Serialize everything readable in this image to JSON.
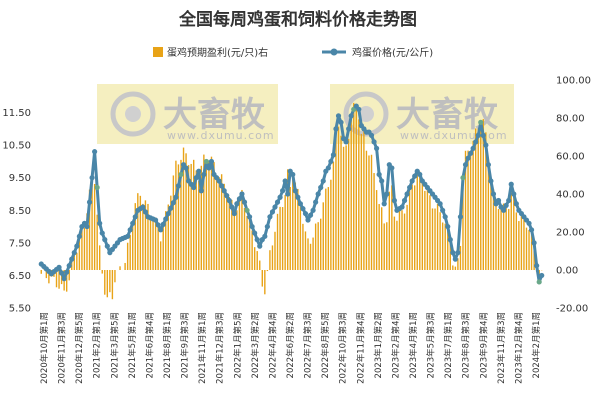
{
  "chart_data": {
    "type": "bar+line",
    "title": "全国每周鸡蛋和饲料价格走势图",
    "legend": {
      "placement": "top",
      "entries": [
        {
          "name": "蛋鸡预期盈利(元/只)右",
          "color": "#E8A317",
          "kind": "bar"
        },
        {
          "name": "鸡蛋价格(元/公斤)",
          "color": "#4A86A8",
          "kind": "line-marker"
        }
      ]
    },
    "left_axis": {
      "ylim": [
        5.5,
        12.5
      ],
      "ticks": [
        "5.50",
        "6.50",
        "7.50",
        "8.50",
        "9.50",
        "10.50",
        "11.50"
      ]
    },
    "right_axis": {
      "ylim": [
        -20,
        100
      ],
      "ticks": [
        "-20.00",
        "0.00",
        "20.00",
        "40.00",
        "60.00",
        "80.00",
        "100.00"
      ]
    },
    "x_tick_labels": [
      "2020年10月第1周",
      "2020年11月第3周",
      "2020年12月第5周",
      "2021年2月第1周",
      "2021年3月第5周",
      "2021年5月第1周",
      "2021年6月第4周",
      "2021年8月第1周",
      "2021年9月第3周",
      "2021年11月第1周",
      "2021年12月第3周",
      "2022年1月第5周",
      "2022年3月第2周",
      "2022年4月第4周",
      "2022年6月第2周",
      "2022年7月第3周",
      "2022年8月第5周",
      "2022年10月第3周",
      "2022年11月第4周",
      "2023年1月第2周",
      "2023年2月第4周",
      "2023年4月第1周",
      "2023年5月第3周",
      "2023年7月第1周",
      "2023年8月第3周",
      "2023年9月第4周",
      "2023年11月第3周",
      "2023年12月第4周",
      "2024年2月第1周"
    ],
    "egg_price_keypoints": [
      [
        0,
        6.85
      ],
      [
        4,
        6.55
      ],
      [
        7,
        6.75
      ],
      [
        9,
        6.4
      ],
      [
        11,
        6.8
      ],
      [
        14,
        7.4
      ],
      [
        16,
        8.0
      ],
      [
        17,
        8.1
      ],
      [
        18,
        8.0
      ],
      [
        20,
        9.5
      ],
      [
        21,
        10.3
      ],
      [
        22,
        9.2
      ],
      [
        23,
        8.1
      ],
      [
        24,
        7.8
      ],
      [
        25,
        7.6
      ],
      [
        27,
        7.2
      ],
      [
        29,
        7.4
      ],
      [
        31,
        7.6
      ],
      [
        34,
        7.7
      ],
      [
        36,
        8.1
      ],
      [
        38,
        8.5
      ],
      [
        40,
        8.6
      ],
      [
        42,
        8.3
      ],
      [
        45,
        8.2
      ],
      [
        47,
        7.9
      ],
      [
        50,
        8.4
      ],
      [
        53,
        8.9
      ],
      [
        55,
        9.6
      ],
      [
        56,
        9.9
      ],
      [
        57,
        9.8
      ],
      [
        58,
        9.4
      ],
      [
        60,
        9.2
      ],
      [
        61,
        9.5
      ],
      [
        62,
        9.7
      ],
      [
        63,
        9.1
      ],
      [
        64,
        9.6
      ],
      [
        65,
        10.0
      ],
      [
        66,
        9.8
      ],
      [
        67,
        10.0
      ],
      [
        68,
        9.6
      ],
      [
        70,
        9.4
      ],
      [
        72,
        9.1
      ],
      [
        74,
        8.8
      ],
      [
        76,
        8.4
      ],
      [
        77,
        8.7
      ],
      [
        79,
        9.0
      ],
      [
        81,
        8.5
      ],
      [
        82,
        8.3
      ],
      [
        83,
        8.0
      ],
      [
        85,
        7.6
      ],
      [
        86,
        7.4
      ],
      [
        87,
        7.6
      ],
      [
        88,
        7.7
      ],
      [
        90,
        8.3
      ],
      [
        92,
        8.6
      ],
      [
        94,
        8.9
      ],
      [
        95,
        9.1
      ],
      [
        96,
        9.4
      ],
      [
        97,
        9.0
      ],
      [
        98,
        9.7
      ],
      [
        99,
        9.6
      ],
      [
        100,
        9.1
      ],
      [
        102,
        8.7
      ],
      [
        104,
        8.4
      ],
      [
        105,
        8.2
      ],
      [
        107,
        8.5
      ],
      [
        109,
        9.0
      ],
      [
        111,
        9.4
      ],
      [
        112,
        9.7
      ],
      [
        113,
        9.8
      ],
      [
        114,
        10.0
      ],
      [
        115,
        10.2
      ],
      [
        116,
        11.0
      ],
      [
        117,
        11.4
      ],
      [
        118,
        11.2
      ],
      [
        119,
        10.7
      ],
      [
        120,
        10.6
      ],
      [
        121,
        11.0
      ],
      [
        122,
        11.4
      ],
      [
        123,
        11.6
      ],
      [
        124,
        11.7
      ],
      [
        125,
        11.6
      ],
      [
        126,
        11.1
      ],
      [
        127,
        11.0
      ],
      [
        128,
        10.9
      ],
      [
        129,
        10.9
      ],
      [
        130,
        10.8
      ],
      [
        131,
        10.6
      ],
      [
        132,
        10.4
      ],
      [
        133,
        9.6
      ],
      [
        134,
        9.4
      ],
      [
        135,
        8.7
      ],
      [
        136,
        9.0
      ],
      [
        137,
        9.9
      ],
      [
        138,
        9.8
      ],
      [
        139,
        8.8
      ],
      [
        140,
        8.5
      ],
      [
        142,
        8.6
      ],
      [
        144,
        9.0
      ],
      [
        146,
        9.4
      ],
      [
        148,
        9.7
      ],
      [
        149,
        9.6
      ],
      [
        150,
        9.4
      ],
      [
        152,
        9.2
      ],
      [
        154,
        9.0
      ],
      [
        155,
        8.9
      ],
      [
        157,
        8.7
      ],
      [
        158,
        8.5
      ],
      [
        159,
        8.3
      ],
      [
        160,
        8.0
      ],
      [
        161,
        7.6
      ],
      [
        162,
        7.2
      ],
      [
        163,
        7.0
      ],
      [
        164,
        7.2
      ],
      [
        165,
        8.3
      ],
      [
        166,
        9.5
      ],
      [
        167,
        9.9
      ],
      [
        168,
        10.1
      ],
      [
        170,
        10.4
      ],
      [
        172,
        10.8
      ],
      [
        173,
        11.2
      ],
      [
        174,
        10.8
      ],
      [
        175,
        10.5
      ],
      [
        176,
        9.9
      ],
      [
        177,
        9.4
      ],
      [
        178,
        9.0
      ],
      [
        179,
        8.7
      ],
      [
        180,
        8.8
      ],
      [
        181,
        8.6
      ],
      [
        182,
        8.5
      ],
      [
        184,
        8.8
      ],
      [
        185,
        9.3
      ],
      [
        186,
        9.0
      ],
      [
        187,
        8.7
      ],
      [
        188,
        8.5
      ],
      [
        189,
        8.4
      ],
      [
        190,
        8.3
      ],
      [
        191,
        8.2
      ],
      [
        192,
        8.1
      ],
      [
        193,
        7.9
      ],
      [
        194,
        7.5
      ],
      [
        195,
        6.8
      ],
      [
        196,
        6.3
      ],
      [
        197,
        6.5
      ]
    ],
    "profit_keypoints": [
      [
        0,
        -2
      ],
      [
        4,
        -5
      ],
      [
        7,
        -8
      ],
      [
        9,
        -12
      ],
      [
        11,
        -5
      ],
      [
        13,
        8
      ],
      [
        16,
        20
      ],
      [
        17,
        24
      ],
      [
        19,
        40
      ],
      [
        21,
        48
      ],
      [
        22,
        30
      ],
      [
        23,
        10
      ],
      [
        24,
        -2
      ],
      [
        25,
        -10
      ],
      [
        26,
        -15
      ],
      [
        28,
        -14
      ],
      [
        29,
        -4
      ],
      [
        31,
        0
      ],
      [
        33,
        5
      ],
      [
        35,
        18
      ],
      [
        37,
        35
      ],
      [
        39,
        40
      ],
      [
        41,
        35
      ],
      [
        43,
        30
      ],
      [
        45,
        25
      ],
      [
        47,
        18
      ],
      [
        49,
        28
      ],
      [
        51,
        42
      ],
      [
        53,
        55
      ],
      [
        55,
        60
      ],
      [
        56,
        62
      ],
      [
        58,
        58
      ],
      [
        60,
        55
      ],
      [
        62,
        50
      ],
      [
        64,
        58
      ],
      [
        66,
        60
      ],
      [
        68,
        55
      ],
      [
        70,
        50
      ],
      [
        72,
        45
      ],
      [
        74,
        38
      ],
      [
        76,
        30
      ],
      [
        77,
        34
      ],
      [
        79,
        40
      ],
      [
        81,
        30
      ],
      [
        83,
        20
      ],
      [
        85,
        10
      ],
      [
        86,
        2
      ],
      [
        87,
        -8
      ],
      [
        88,
        -10
      ],
      [
        89,
        -2
      ],
      [
        90,
        8
      ],
      [
        92,
        22
      ],
      [
        94,
        32
      ],
      [
        96,
        40
      ],
      [
        97,
        50
      ],
      [
        98,
        44
      ],
      [
        99,
        52
      ],
      [
        100,
        45
      ],
      [
        102,
        35
      ],
      [
        104,
        18
      ],
      [
        105,
        15
      ],
      [
        107,
        18
      ],
      [
        109,
        25
      ],
      [
        111,
        35
      ],
      [
        112,
        40
      ],
      [
        113,
        45
      ],
      [
        114,
        50
      ],
      [
        115,
        55
      ],
      [
        116,
        70
      ],
      [
        117,
        78
      ],
      [
        118,
        72
      ],
      [
        119,
        62
      ],
      [
        120,
        65
      ],
      [
        121,
        72
      ],
      [
        122,
        80
      ],
      [
        123,
        85
      ],
      [
        124,
        88
      ],
      [
        125,
        82
      ],
      [
        126,
        70
      ],
      [
        127,
        72
      ],
      [
        128,
        65
      ],
      [
        129,
        62
      ],
      [
        130,
        58
      ],
      [
        131,
        50
      ],
      [
        132,
        45
      ],
      [
        133,
        35
      ],
      [
        134,
        30
      ],
      [
        135,
        25
      ],
      [
        136,
        28
      ],
      [
        137,
        40
      ],
      [
        138,
        42
      ],
      [
        139,
        30
      ],
      [
        140,
        28
      ],
      [
        142,
        30
      ],
      [
        144,
        35
      ],
      [
        146,
        45
      ],
      [
        148,
        50
      ],
      [
        150,
        48
      ],
      [
        152,
        40
      ],
      [
        154,
        35
      ],
      [
        156,
        32
      ],
      [
        158,
        28
      ],
      [
        160,
        20
      ],
      [
        161,
        15
      ],
      [
        162,
        5
      ],
      [
        163,
        0
      ],
      [
        164,
        4
      ],
      [
        165,
        15
      ],
      [
        166,
        45
      ],
      [
        167,
        60
      ],
      [
        168,
        62
      ],
      [
        170,
        68
      ],
      [
        172,
        75
      ],
      [
        173,
        80
      ],
      [
        174,
        78
      ],
      [
        175,
        70
      ],
      [
        176,
        60
      ],
      [
        177,
        50
      ],
      [
        178,
        40
      ],
      [
        179,
        35
      ],
      [
        180,
        35
      ],
      [
        182,
        32
      ],
      [
        184,
        35
      ],
      [
        185,
        40
      ],
      [
        186,
        38
      ],
      [
        187,
        32
      ],
      [
        188,
        28
      ],
      [
        189,
        28
      ],
      [
        190,
        25
      ],
      [
        191,
        25
      ],
      [
        192,
        22
      ],
      [
        193,
        18
      ],
      [
        194,
        10
      ],
      [
        195,
        2
      ],
      [
        196,
        -5
      ],
      [
        197,
        -3
      ]
    ],
    "green_marker_weeks": [
      22,
      55,
      65,
      81,
      123,
      166,
      173,
      196
    ],
    "colors": {
      "bar": "#E8A317",
      "line": "#4A86A8",
      "marker_fill": "#4A86A8",
      "highlight_marker": "#6AA88A",
      "watermark_band": "#F5EFC0"
    }
  },
  "watermark": {
    "brand": "大畜牧",
    "url": "www.dxumu.com"
  }
}
